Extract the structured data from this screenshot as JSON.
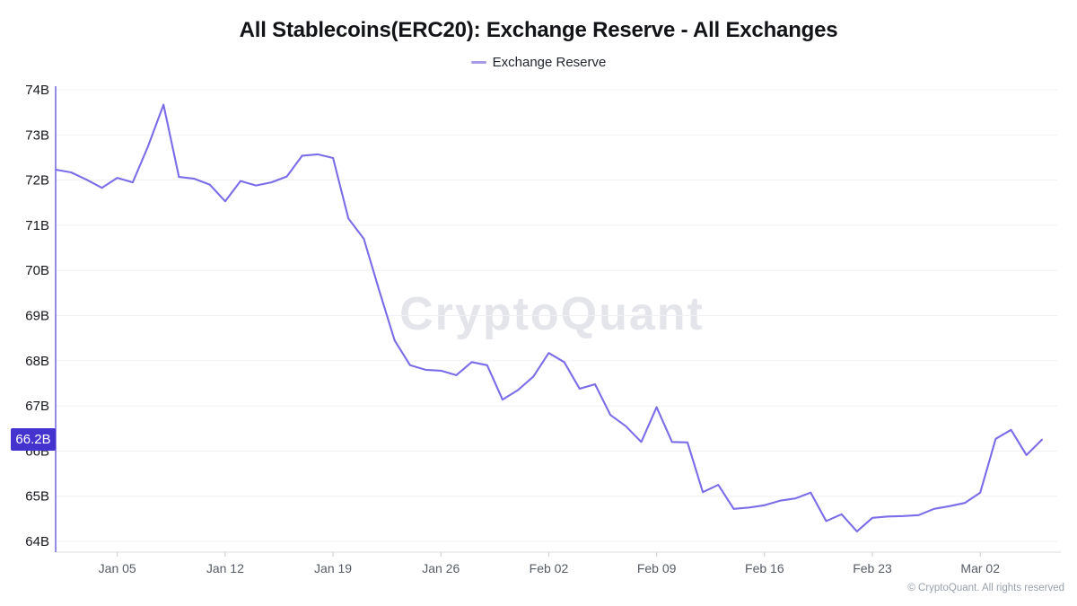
{
  "header": {
    "title": "All Stablecoins(ERC20): Exchange Reserve - All Exchanges",
    "legend": {
      "label": "Exchange Reserve"
    }
  },
  "watermark": "CryptoQuant",
  "footer": {
    "copyright": "© CryptoQuant. All rights reserved"
  },
  "colors": {
    "line": "#7B6CE8",
    "y_axis_line": "#7B6CE8",
    "x_axis_line": "#DBDDE2",
    "tick": "#C9CCD3",
    "grid": "#F1F1F5",
    "y_label": "#14161B",
    "x_label": "#565C66",
    "badge_bg": "#4433CF",
    "badge_text": "#FFFFFF",
    "watermark": "#E4E5EB",
    "legend_dash": "#A79BE8"
  },
  "chart_data": {
    "type": "line",
    "title": "All Stablecoins(ERC20): Exchange Reserve - All Exchanges",
    "unit": "B = billions",
    "grid": "horizontal",
    "legend_position": "top",
    "ylim": [
      63.8,
      74.1
    ],
    "y_ticks": [
      {
        "label": "74B",
        "value": 74
      },
      {
        "label": "73B",
        "value": 73
      },
      {
        "label": "72B",
        "value": 72
      },
      {
        "label": "71B",
        "value": 71
      },
      {
        "label": "70B",
        "value": 70
      },
      {
        "label": "69B",
        "value": 69
      },
      {
        "label": "68B",
        "value": 68
      },
      {
        "label": "67B",
        "value": 67
      },
      {
        "label": "66B",
        "value": 66
      },
      {
        "label": "65B",
        "value": 65
      },
      {
        "label": "64B",
        "value": 64
      }
    ],
    "x_tick_labels": [
      "Jan 05",
      "Jan 12",
      "Jan 19",
      "Jan 26",
      "Feb 02",
      "Feb 09",
      "Feb 16",
      "Feb 23",
      "Mar 02"
    ],
    "x_first_tick_index": 4,
    "x_tick_interval": 7,
    "x": [
      "Jan 01",
      "Jan 02",
      "Jan 03",
      "Jan 04",
      "Jan 05",
      "Jan 06",
      "Jan 07",
      "Jan 08",
      "Jan 09",
      "Jan 10",
      "Jan 11",
      "Jan 12",
      "Jan 13",
      "Jan 14",
      "Jan 15",
      "Jan 16",
      "Jan 17",
      "Jan 18",
      "Jan 19",
      "Jan 20",
      "Jan 21",
      "Jan 22",
      "Jan 23",
      "Jan 24",
      "Jan 25",
      "Jan 26",
      "Jan 27",
      "Jan 28",
      "Jan 29",
      "Jan 30",
      "Jan 31",
      "Feb 01",
      "Feb 02",
      "Feb 03",
      "Feb 04",
      "Feb 05",
      "Feb 06",
      "Feb 07",
      "Feb 08",
      "Feb 09",
      "Feb 10",
      "Feb 11",
      "Feb 12",
      "Feb 13",
      "Feb 14",
      "Feb 15",
      "Feb 16",
      "Feb 17",
      "Feb 18",
      "Feb 19",
      "Feb 20",
      "Feb 21",
      "Feb 22",
      "Feb 23",
      "Feb 24",
      "Feb 25",
      "Feb 26",
      "Feb 27",
      "Feb 28",
      "Mar 01",
      "Mar 02",
      "Mar 03",
      "Mar 04",
      "Mar 05",
      "Mar 06"
    ],
    "series": [
      {
        "name": "Exchange Reserve",
        "values": [
          72.23,
          72.17,
          72.01,
          71.83,
          72.05,
          71.95,
          72.75,
          73.67,
          72.07,
          72.03,
          71.9,
          71.53,
          71.98,
          71.88,
          71.95,
          72.08,
          72.54,
          72.57,
          72.49,
          71.15,
          70.7,
          69.55,
          68.45,
          67.9,
          67.8,
          67.78,
          67.68,
          67.97,
          67.9,
          67.14,
          67.35,
          67.65,
          68.17,
          67.97,
          67.38,
          67.48,
          66.8,
          66.55,
          66.2,
          66.97,
          66.2,
          66.19,
          65.09,
          65.25,
          64.72,
          64.75,
          64.8,
          64.9,
          64.95,
          65.08,
          64.45,
          64.6,
          64.22,
          64.52,
          64.55,
          64.56,
          64.58,
          64.72,
          64.78,
          64.85,
          65.08,
          66.27,
          66.47,
          65.91,
          66.25
        ]
      }
    ],
    "current_value": {
      "label": "66.2B",
      "value": 66.2
    }
  }
}
